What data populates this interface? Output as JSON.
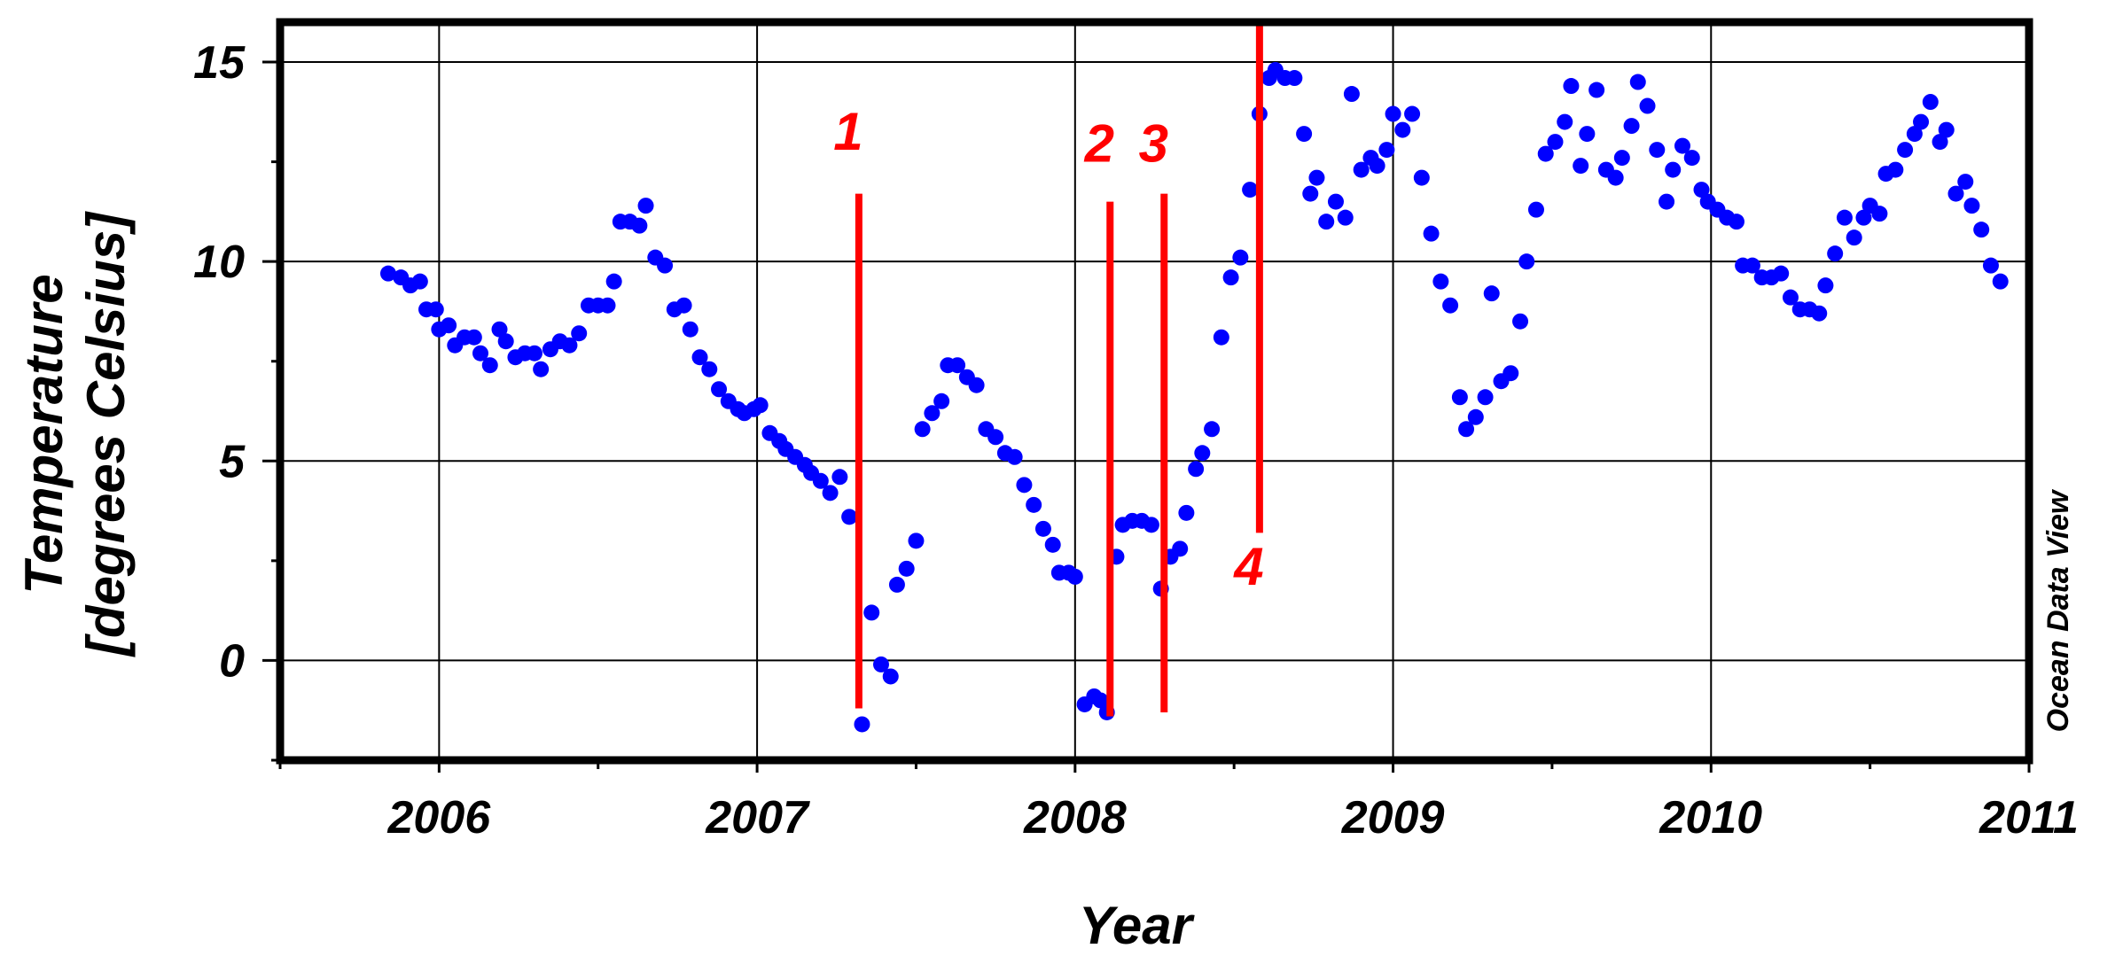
{
  "chart_data": {
    "type": "scatter",
    "title": "",
    "xlabel": "Year",
    "ylabel": [
      "Temperature",
      "[degrees Celsius]"
    ],
    "x_ticks": [
      "2006",
      "2007",
      "2008",
      "2009",
      "2010",
      "2011"
    ],
    "y_ticks": [
      "0",
      "5",
      "10",
      "15"
    ],
    "xlim": [
      2005.5,
      2011.0
    ],
    "ylim": [
      -2.5,
      16.0
    ],
    "grid": true,
    "credit": "Ocean Data View",
    "colors": {
      "points": "#0000ff",
      "markers": "#ff0000",
      "frame": "#000000",
      "grid": "#000000"
    },
    "markers": [
      {
        "label": "1",
        "x": 2007.32,
        "y_from": -1.2,
        "y_to": 11.7,
        "label_y": 12.8
      },
      {
        "label": "2",
        "x": 2008.11,
        "y_from": -1.4,
        "y_to": 11.5,
        "label_y": 12.5
      },
      {
        "label": "3",
        "x": 2008.28,
        "y_from": -1.3,
        "y_to": 11.7,
        "label_y": 12.5
      },
      {
        "label": "4",
        "x": 2008.58,
        "y_from": 3.2,
        "y_to": 16.0,
        "label_y": 1.9
      }
    ],
    "series": [
      {
        "points": [
          [
            2005.84,
            9.7
          ],
          [
            2005.88,
            9.6
          ],
          [
            2005.91,
            9.4
          ],
          [
            2005.94,
            9.5
          ],
          [
            2005.96,
            8.8
          ],
          [
            2005.99,
            8.8
          ],
          [
            2006.0,
            8.3
          ],
          [
            2006.03,
            8.4
          ],
          [
            2006.05,
            7.9
          ],
          [
            2006.08,
            8.1
          ],
          [
            2006.11,
            8.1
          ],
          [
            2006.13,
            7.7
          ],
          [
            2006.16,
            7.4
          ],
          [
            2006.19,
            8.3
          ],
          [
            2006.21,
            8.0
          ],
          [
            2006.24,
            7.6
          ],
          [
            2006.27,
            7.7
          ],
          [
            2006.3,
            7.7
          ],
          [
            2006.32,
            7.3
          ],
          [
            2006.35,
            7.8
          ],
          [
            2006.38,
            8.0
          ],
          [
            2006.41,
            7.9
          ],
          [
            2006.44,
            8.2
          ],
          [
            2006.47,
            8.9
          ],
          [
            2006.5,
            8.9
          ],
          [
            2006.53,
            8.9
          ],
          [
            2006.55,
            9.5
          ],
          [
            2006.57,
            11.0
          ],
          [
            2006.6,
            11.0
          ],
          [
            2006.63,
            10.9
          ],
          [
            2006.65,
            11.4
          ],
          [
            2006.68,
            10.1
          ],
          [
            2006.71,
            9.9
          ],
          [
            2006.74,
            8.8
          ],
          [
            2006.77,
            8.9
          ],
          [
            2006.79,
            8.3
          ],
          [
            2006.82,
            7.6
          ],
          [
            2006.85,
            7.3
          ],
          [
            2006.88,
            6.8
          ],
          [
            2006.91,
            6.5
          ],
          [
            2006.94,
            6.3
          ],
          [
            2006.96,
            6.2
          ],
          [
            2006.99,
            6.3
          ],
          [
            2007.01,
            6.4
          ],
          [
            2007.04,
            5.7
          ],
          [
            2007.07,
            5.5
          ],
          [
            2007.09,
            5.3
          ],
          [
            2007.12,
            5.1
          ],
          [
            2007.15,
            4.9
          ],
          [
            2007.17,
            4.7
          ],
          [
            2007.2,
            4.5
          ],
          [
            2007.23,
            4.2
          ],
          [
            2007.26,
            4.6
          ],
          [
            2007.29,
            3.6
          ],
          [
            2007.33,
            -1.6
          ],
          [
            2007.36,
            1.2
          ],
          [
            2007.39,
            -0.1
          ],
          [
            2007.42,
            -0.4
          ],
          [
            2007.44,
            1.9
          ],
          [
            2007.47,
            2.3
          ],
          [
            2007.5,
            3.0
          ],
          [
            2007.52,
            5.8
          ],
          [
            2007.55,
            6.2
          ],
          [
            2007.58,
            6.5
          ],
          [
            2007.6,
            7.4
          ],
          [
            2007.63,
            7.4
          ],
          [
            2007.66,
            7.1
          ],
          [
            2007.69,
            6.9
          ],
          [
            2007.72,
            5.8
          ],
          [
            2007.75,
            5.6
          ],
          [
            2007.78,
            5.2
          ],
          [
            2007.81,
            5.1
          ],
          [
            2007.84,
            4.4
          ],
          [
            2007.87,
            3.9
          ],
          [
            2007.9,
            3.3
          ],
          [
            2007.93,
            2.9
          ],
          [
            2007.95,
            2.2
          ],
          [
            2007.98,
            2.2
          ],
          [
            2008.0,
            2.1
          ],
          [
            2008.03,
            -1.1
          ],
          [
            2008.06,
            -0.9
          ],
          [
            2008.08,
            -1.0
          ],
          [
            2008.1,
            -1.3
          ],
          [
            2008.13,
            2.6
          ],
          [
            2008.15,
            3.4
          ],
          [
            2008.18,
            3.5
          ],
          [
            2008.21,
            3.5
          ],
          [
            2008.24,
            3.4
          ],
          [
            2008.27,
            1.8
          ],
          [
            2008.3,
            2.6
          ],
          [
            2008.33,
            2.8
          ],
          [
            2008.35,
            3.7
          ],
          [
            2008.38,
            4.8
          ],
          [
            2008.4,
            5.2
          ],
          [
            2008.43,
            5.8
          ],
          [
            2008.46,
            8.1
          ],
          [
            2008.49,
            9.6
          ],
          [
            2008.52,
            10.1
          ],
          [
            2008.55,
            11.8
          ],
          [
            2008.58,
            13.7
          ],
          [
            2008.61,
            14.6
          ],
          [
            2008.63,
            14.8
          ],
          [
            2008.66,
            14.6
          ],
          [
            2008.69,
            14.6
          ],
          [
            2008.72,
            13.2
          ],
          [
            2008.74,
            11.7
          ],
          [
            2008.76,
            12.1
          ],
          [
            2008.79,
            11.0
          ],
          [
            2008.82,
            11.5
          ],
          [
            2008.85,
            11.1
          ],
          [
            2008.87,
            14.2
          ],
          [
            2008.9,
            12.3
          ],
          [
            2008.93,
            12.6
          ],
          [
            2008.95,
            12.4
          ],
          [
            2008.98,
            12.8
          ],
          [
            2009.0,
            13.7
          ],
          [
            2009.03,
            13.3
          ],
          [
            2009.06,
            13.7
          ],
          [
            2009.09,
            12.1
          ],
          [
            2009.12,
            10.7
          ],
          [
            2009.15,
            9.5
          ],
          [
            2009.18,
            8.9
          ],
          [
            2009.21,
            6.6
          ],
          [
            2009.23,
            5.8
          ],
          [
            2009.26,
            6.1
          ],
          [
            2009.29,
            6.6
          ],
          [
            2009.31,
            9.2
          ],
          [
            2009.34,
            7.0
          ],
          [
            2009.37,
            7.2
          ],
          [
            2009.4,
            8.5
          ],
          [
            2009.42,
            10.0
          ],
          [
            2009.45,
            11.3
          ],
          [
            2009.48,
            12.7
          ],
          [
            2009.51,
            13.0
          ],
          [
            2009.54,
            13.5
          ],
          [
            2009.56,
            14.4
          ],
          [
            2009.59,
            12.4
          ],
          [
            2009.61,
            13.2
          ],
          [
            2009.64,
            14.3
          ],
          [
            2009.67,
            12.3
          ],
          [
            2009.7,
            12.1
          ],
          [
            2009.72,
            12.6
          ],
          [
            2009.75,
            13.4
          ],
          [
            2009.77,
            14.5
          ],
          [
            2009.8,
            13.9
          ],
          [
            2009.83,
            12.8
          ],
          [
            2009.86,
            11.5
          ],
          [
            2009.88,
            12.3
          ],
          [
            2009.91,
            12.9
          ],
          [
            2009.94,
            12.6
          ],
          [
            2009.97,
            11.8
          ],
          [
            2009.99,
            11.5
          ],
          [
            2010.02,
            11.3
          ],
          [
            2010.05,
            11.1
          ],
          [
            2010.08,
            11.0
          ],
          [
            2010.1,
            9.9
          ],
          [
            2010.13,
            9.9
          ],
          [
            2010.16,
            9.6
          ],
          [
            2010.19,
            9.6
          ],
          [
            2010.22,
            9.7
          ],
          [
            2010.25,
            9.1
          ],
          [
            2010.28,
            8.8
          ],
          [
            2010.31,
            8.8
          ],
          [
            2010.34,
            8.7
          ],
          [
            2010.36,
            9.4
          ],
          [
            2010.39,
            10.2
          ],
          [
            2010.42,
            11.1
          ],
          [
            2010.45,
            10.6
          ],
          [
            2010.48,
            11.1
          ],
          [
            2010.5,
            11.4
          ],
          [
            2010.53,
            11.2
          ],
          [
            2010.55,
            12.2
          ],
          [
            2010.58,
            12.3
          ],
          [
            2010.61,
            12.8
          ],
          [
            2010.64,
            13.2
          ],
          [
            2010.66,
            13.5
          ],
          [
            2010.69,
            14.0
          ],
          [
            2010.72,
            13.0
          ],
          [
            2010.74,
            13.3
          ],
          [
            2010.77,
            11.7
          ],
          [
            2010.8,
            12.0
          ],
          [
            2010.82,
            11.4
          ],
          [
            2010.85,
            10.8
          ],
          [
            2010.88,
            9.9
          ],
          [
            2010.91,
            9.5
          ]
        ]
      }
    ]
  }
}
